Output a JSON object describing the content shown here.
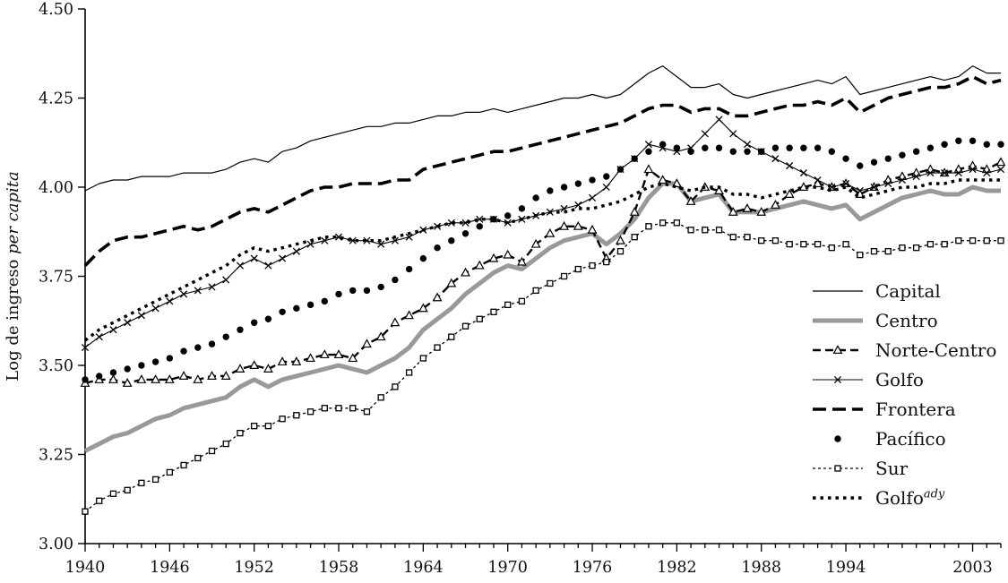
{
  "chart_data": {
    "type": "line",
    "title": "",
    "xlabel": "",
    "ylabel": "Log de ingreso per capita",
    "ylabel_regular": "Log de ingreso ",
    "ylabel_italic": "per capita",
    "ylim": [
      3.0,
      4.5
    ],
    "yticks": [
      3.0,
      3.25,
      3.5,
      3.75,
      4.0,
      4.25,
      4.5
    ],
    "ytick_labels": [
      "3.00",
      "3.25",
      "3.50",
      "3.75",
      "4.00",
      "4.25",
      "4.50"
    ],
    "x_start": 1940,
    "x_end": 2005,
    "xticks": [
      1940,
      1946,
      1952,
      1958,
      1964,
      1970,
      1976,
      1982,
      1988,
      1994,
      2003
    ],
    "grid": false,
    "legend_position": "right-middle",
    "colors": {
      "black": "#000000",
      "gray": "#999999"
    },
    "series": [
      {
        "name": "Capital",
        "label": "Capital",
        "slug": "capital",
        "color": "#000000",
        "line_width": 1.2,
        "dash": "",
        "marker": "none",
        "values": [
          3.99,
          4.01,
          4.02,
          4.02,
          4.03,
          4.03,
          4.03,
          4.04,
          4.04,
          4.04,
          4.05,
          4.07,
          4.08,
          4.07,
          4.1,
          4.11,
          4.13,
          4.14,
          4.15,
          4.16,
          4.17,
          4.17,
          4.18,
          4.18,
          4.19,
          4.2,
          4.2,
          4.21,
          4.21,
          4.22,
          4.21,
          4.22,
          4.23,
          4.24,
          4.25,
          4.25,
          4.26,
          4.25,
          4.26,
          4.29,
          4.32,
          4.34,
          4.31,
          4.28,
          4.28,
          4.29,
          4.26,
          4.25,
          4.26,
          4.27,
          4.28,
          4.29,
          4.3,
          4.29,
          4.31,
          4.26,
          4.27,
          4.28,
          4.29,
          4.3,
          4.31,
          4.3,
          4.31,
          4.34,
          4.32,
          4.32
        ]
      },
      {
        "name": "Centro",
        "label": "Centro",
        "slug": "centro",
        "color": "#999999",
        "line_width": 5,
        "dash": "",
        "marker": "none",
        "values": [
          3.26,
          3.28,
          3.3,
          3.31,
          3.33,
          3.35,
          3.36,
          3.38,
          3.39,
          3.4,
          3.41,
          3.44,
          3.46,
          3.44,
          3.46,
          3.47,
          3.48,
          3.49,
          3.5,
          3.49,
          3.48,
          3.5,
          3.52,
          3.55,
          3.6,
          3.63,
          3.66,
          3.7,
          3.73,
          3.76,
          3.78,
          3.77,
          3.8,
          3.83,
          3.85,
          3.86,
          3.87,
          3.84,
          3.87,
          3.91,
          3.97,
          4.01,
          4.01,
          3.96,
          3.97,
          3.98,
          3.93,
          3.93,
          3.93,
          3.94,
          3.95,
          3.96,
          3.95,
          3.94,
          3.95,
          3.91,
          3.93,
          3.95,
          3.97,
          3.98,
          3.99,
          3.98,
          3.98,
          4.0,
          3.99,
          3.99
        ]
      },
      {
        "name": "Norte-Centro",
        "label": "Norte-Centro",
        "slug": "norte-centro",
        "color": "#000000",
        "line_width": 2.4,
        "dash": "9 5",
        "marker": "triangle-open",
        "values": [
          3.45,
          3.46,
          3.46,
          3.45,
          3.46,
          3.46,
          3.46,
          3.47,
          3.46,
          3.47,
          3.47,
          3.49,
          3.5,
          3.49,
          3.51,
          3.51,
          3.52,
          3.53,
          3.53,
          3.52,
          3.56,
          3.58,
          3.62,
          3.64,
          3.66,
          3.69,
          3.73,
          3.76,
          3.78,
          3.8,
          3.81,
          3.79,
          3.84,
          3.87,
          3.89,
          3.89,
          3.88,
          3.8,
          3.85,
          3.93,
          4.05,
          4.02,
          4.01,
          3.96,
          4.0,
          3.99,
          3.93,
          3.94,
          3.93,
          3.95,
          3.98,
          4.0,
          4.01,
          4.0,
          4.01,
          3.98,
          4.0,
          4.02,
          4.03,
          4.04,
          4.05,
          4.04,
          4.05,
          4.06,
          4.05,
          4.07
        ]
      },
      {
        "name": "Golfo",
        "label": "Golfo",
        "slug": "golfo",
        "color": "#000000",
        "line_width": 1.1,
        "dash": "",
        "marker": "x",
        "values": [
          3.55,
          3.58,
          3.6,
          3.62,
          3.64,
          3.66,
          3.68,
          3.7,
          3.71,
          3.72,
          3.74,
          3.78,
          3.8,
          3.78,
          3.8,
          3.82,
          3.84,
          3.85,
          3.86,
          3.85,
          3.85,
          3.84,
          3.85,
          3.86,
          3.88,
          3.89,
          3.9,
          3.9,
          3.91,
          3.91,
          3.9,
          3.91,
          3.92,
          3.93,
          3.94,
          3.95,
          3.97,
          4.0,
          4.05,
          4.08,
          4.12,
          4.11,
          4.1,
          4.11,
          4.15,
          4.19,
          4.15,
          4.12,
          4.1,
          4.08,
          4.06,
          4.04,
          4.02,
          4.0,
          4.01,
          3.99,
          4.0,
          4.01,
          4.02,
          4.03,
          4.04,
          4.04,
          4.04,
          4.05,
          4.04,
          4.05
        ]
      },
      {
        "name": "Frontera",
        "label": "Frontera",
        "slug": "frontera",
        "color": "#000000",
        "line_width": 3.6,
        "dash": "15 7",
        "marker": "none",
        "values": [
          3.78,
          3.82,
          3.85,
          3.86,
          3.86,
          3.87,
          3.88,
          3.89,
          3.88,
          3.89,
          3.91,
          3.93,
          3.94,
          3.93,
          3.95,
          3.97,
          3.99,
          4.0,
          4.0,
          4.01,
          4.01,
          4.01,
          4.02,
          4.02,
          4.05,
          4.06,
          4.07,
          4.08,
          4.09,
          4.1,
          4.1,
          4.11,
          4.12,
          4.13,
          4.14,
          4.15,
          4.16,
          4.17,
          4.18,
          4.2,
          4.22,
          4.23,
          4.23,
          4.21,
          4.22,
          4.22,
          4.2,
          4.2,
          4.21,
          4.22,
          4.23,
          4.23,
          4.24,
          4.23,
          4.25,
          4.21,
          4.23,
          4.25,
          4.26,
          4.27,
          4.28,
          4.28,
          4.29,
          4.31,
          4.29,
          4.3
        ]
      },
      {
        "name": "Pacífico",
        "label": "Pacífico",
        "slug": "pacifico",
        "color": "#000000",
        "line_width": 0,
        "dash": "",
        "marker": "circle-filled",
        "values": [
          3.46,
          3.47,
          3.48,
          3.49,
          3.5,
          3.51,
          3.52,
          3.54,
          3.55,
          3.56,
          3.58,
          3.6,
          3.62,
          3.63,
          3.65,
          3.66,
          3.67,
          3.68,
          3.7,
          3.71,
          3.71,
          3.72,
          3.74,
          3.77,
          3.8,
          3.83,
          3.85,
          3.87,
          3.89,
          3.91,
          3.92,
          3.94,
          3.97,
          3.99,
          4.0,
          4.01,
          4.02,
          4.03,
          4.05,
          4.08,
          4.1,
          4.12,
          4.11,
          4.1,
          4.11,
          4.11,
          4.1,
          4.1,
          4.1,
          4.11,
          4.11,
          4.11,
          4.11,
          4.1,
          4.08,
          4.06,
          4.07,
          4.08,
          4.09,
          4.1,
          4.11,
          4.12,
          4.13,
          4.13,
          4.12,
          4.12
        ]
      },
      {
        "name": "Sur",
        "label": "Sur",
        "slug": "sur",
        "color": "#000000",
        "line_width": 1.3,
        "dash": "3 3",
        "marker": "square-open",
        "values": [
          3.09,
          3.12,
          3.14,
          3.15,
          3.17,
          3.18,
          3.2,
          3.22,
          3.24,
          3.26,
          3.28,
          3.31,
          3.33,
          3.33,
          3.35,
          3.36,
          3.37,
          3.38,
          3.38,
          3.38,
          3.37,
          3.41,
          3.44,
          3.48,
          3.52,
          3.55,
          3.58,
          3.61,
          3.63,
          3.65,
          3.67,
          3.68,
          3.71,
          3.73,
          3.75,
          3.77,
          3.78,
          3.79,
          3.82,
          3.86,
          3.89,
          3.9,
          3.9,
          3.88,
          3.88,
          3.88,
          3.86,
          3.86,
          3.85,
          3.85,
          3.84,
          3.84,
          3.84,
          3.83,
          3.84,
          3.81,
          3.82,
          3.82,
          3.83,
          3.83,
          3.84,
          3.84,
          3.85,
          3.85,
          3.85,
          3.85
        ]
      },
      {
        "name": "Golfo ady",
        "label": "Golfo",
        "label_sup": "ady",
        "slug": "golfo-ady",
        "color": "#000000",
        "line_width": 3.4,
        "dash": "3.5 5",
        "marker": "none",
        "values": [
          3.57,
          3.6,
          3.62,
          3.64,
          3.66,
          3.68,
          3.7,
          3.72,
          3.74,
          3.76,
          3.78,
          3.81,
          3.83,
          3.82,
          3.83,
          3.84,
          3.85,
          3.86,
          3.86,
          3.85,
          3.85,
          3.85,
          3.86,
          3.87,
          3.88,
          3.89,
          3.9,
          3.9,
          3.91,
          3.91,
          3.9,
          3.91,
          3.92,
          3.93,
          3.93,
          3.94,
          3.94,
          3.95,
          3.96,
          3.98,
          4.0,
          4.01,
          4.0,
          3.99,
          4.0,
          4.0,
          3.98,
          3.98,
          3.97,
          3.98,
          3.99,
          4.0,
          4.0,
          3.99,
          4.0,
          3.97,
          3.98,
          3.99,
          4.0,
          4.0,
          4.01,
          4.01,
          4.02,
          4.02,
          4.02,
          4.02
        ]
      }
    ]
  }
}
